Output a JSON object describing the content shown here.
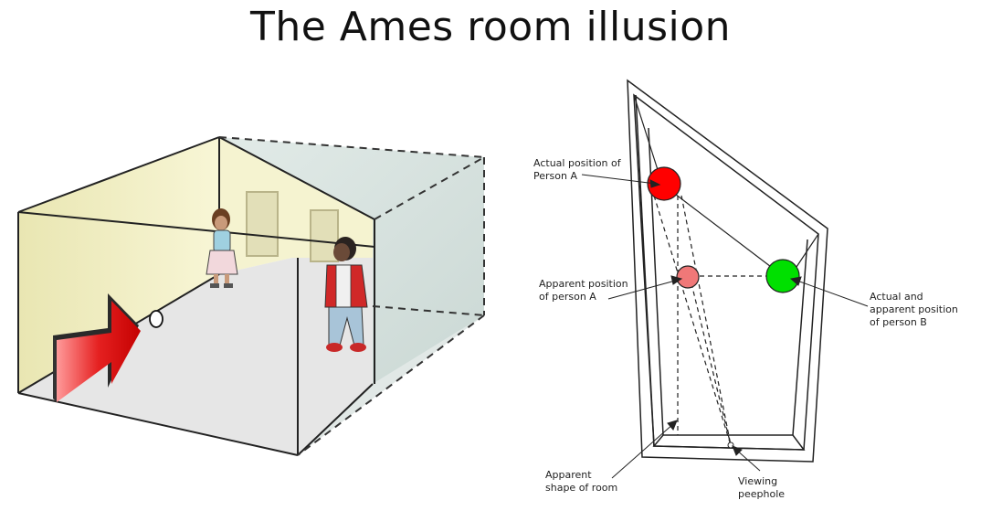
{
  "title": "The Ames room illusion",
  "diagram": {
    "labels": {
      "actual_a_line1": "Actual position of",
      "actual_a_line2": "Person A",
      "apparent_a_line1": "Apparent position",
      "apparent_a_line2": "of person A",
      "person_b_line1": "Actual and",
      "person_b_line2": "apparent position",
      "person_b_line3": "of person B",
      "room_shape_line1": "Apparent",
      "room_shape_line2": "shape of room",
      "peephole_line1": "Viewing",
      "peephole_line2": "peephole"
    },
    "colors": {
      "person_a_actual": "#ff0000",
      "person_a_apparent": "#f07878",
      "person_b": "#00e000"
    }
  },
  "illustration": {
    "colors": {
      "wall": "#f3f0c4",
      "floor": "#e4e4e4",
      "arrow": "#e01818",
      "side_glass": "#c6d6d2"
    }
  }
}
